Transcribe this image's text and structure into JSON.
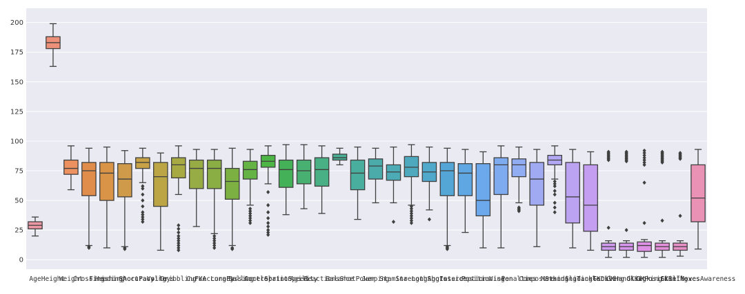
{
  "chart_data": {
    "type": "box",
    "title": "",
    "xlabel": "",
    "ylabel": "",
    "ylim": [
      -8,
      212
    ],
    "yticks": [
      0,
      25,
      50,
      75,
      100,
      125,
      150,
      175,
      200
    ],
    "grid": "horizontal",
    "background_color": "#eaeaf2",
    "categories": [
      {
        "name": "Age",
        "min": 20,
        "q1": 26,
        "median": 29,
        "q3": 32,
        "max": 36,
        "outliers": [],
        "color": "#ea96a3"
      },
      {
        "name": "Height",
        "min": 163,
        "q1": 178,
        "median": 183,
        "q3": 188,
        "max": 199,
        "outliers": [],
        "color": "#ed9079"
      },
      {
        "name": "Weight",
        "min": 59,
        "q1": 72,
        "median": 77,
        "q3": 84,
        "max": 96,
        "outliers": [],
        "color": "#ee9160"
      },
      {
        "name": "Crossing",
        "min": 12,
        "q1": 54,
        "median": 75,
        "q3": 82,
        "max": 94,
        "outliers": [
          10,
          11
        ],
        "color": "#e08c4a"
      },
      {
        "name": "Finishing",
        "min": 10,
        "q1": 50,
        "median": 73,
        "q3": 82,
        "max": 95,
        "outliers": [],
        "color": "#d99447"
      },
      {
        "name": "HeadingAccuracy",
        "min": 11,
        "q1": 53,
        "median": 68,
        "q3": 81,
        "max": 92,
        "outliers": [
          9,
          10
        ],
        "color": "#cf9a49"
      },
      {
        "name": "ShortPassing",
        "min": 65,
        "q1": 77,
        "median": 82,
        "q3": 86,
        "max": 94,
        "outliers": [
          32,
          34,
          36,
          38,
          40,
          45,
          50,
          55,
          60,
          62
        ],
        "color": "#c8a246"
      },
      {
        "name": "Volleys",
        "min": 8,
        "q1": 45,
        "median": 70,
        "q3": 82,
        "max": 90,
        "outliers": [],
        "color": "#bba545"
      },
      {
        "name": "Dribbling",
        "min": 55,
        "q1": 69,
        "median": 80,
        "q3": 86,
        "max": 96,
        "outliers": [
          8,
          10,
          12,
          14,
          16,
          18,
          20,
          23,
          26,
          29
        ],
        "color": "#a7a943"
      },
      {
        "name": "Curve",
        "min": 28,
        "q1": 60,
        "median": 77,
        "q3": 84,
        "max": 93,
        "outliers": [],
        "color": "#98ac45"
      },
      {
        "name": "FKAccuracy",
        "min": 22,
        "q1": 60,
        "median": 77,
        "q3": 84,
        "max": 93,
        "outliers": [
          10,
          12,
          14,
          16,
          18,
          20
        ],
        "color": "#8aae44"
      },
      {
        "name": "LongPassing",
        "min": 12,
        "q1": 51,
        "median": 66,
        "q3": 77,
        "max": 94,
        "outliers": [
          9,
          10
        ],
        "color": "#7cb042"
      },
      {
        "name": "BallControl",
        "min": 46,
        "q1": 68,
        "median": 76,
        "q3": 83,
        "max": 93,
        "outliers": [
          31,
          33,
          35,
          37,
          39,
          41,
          43
        ],
        "color": "#65b345"
      },
      {
        "name": "Acceleration",
        "min": 64,
        "q1": 78,
        "median": 83,
        "q3": 88,
        "max": 96,
        "outliers": [
          21,
          23,
          25,
          28,
          31,
          35,
          40,
          46,
          57
        ],
        "color": "#4db446"
      },
      {
        "name": "SprintSpeed",
        "min": 38,
        "q1": 61,
        "median": 76,
        "q3": 84,
        "max": 97,
        "outliers": [],
        "color": "#44b158"
      },
      {
        "name": "Agility",
        "min": 43,
        "q1": 64,
        "median": 75,
        "q3": 84,
        "max": 97,
        "outliers": [],
        "color": "#48b171"
      },
      {
        "name": "Reactions",
        "min": 39,
        "q1": 62,
        "median": 76,
        "q3": 86,
        "max": 96,
        "outliers": [],
        "color": "#49b085"
      },
      {
        "name": "Balance",
        "min": 80,
        "q1": 84,
        "median": 86,
        "q3": 89,
        "max": 94,
        "outliers": [],
        "color": "#4aaf94"
      },
      {
        "name": "ShotPower",
        "min": 34,
        "q1": 59,
        "median": 73,
        "q3": 84,
        "max": 95,
        "outliers": [],
        "color": "#4aae9f"
      },
      {
        "name": "Jumping",
        "min": 48,
        "q1": 68,
        "median": 79,
        "q3": 85,
        "max": 94,
        "outliers": [],
        "color": "#4babaa"
      },
      {
        "name": "Stamina",
        "min": 48,
        "q1": 67,
        "median": 74,
        "q3": 80,
        "max": 95,
        "outliers": [
          32
        ],
        "color": "#4cabb5"
      },
      {
        "name": "Strength",
        "min": 46,
        "q1": 70,
        "median": 78,
        "q3": 87,
        "max": 97,
        "outliers": [
          31,
          33,
          35,
          37,
          39,
          41,
          43,
          45
        ],
        "color": "#4ea9bf"
      },
      {
        "name": "LongShots",
        "min": 42,
        "q1": 66,
        "median": 74,
        "q3": 82,
        "max": 95,
        "outliers": [
          34
        ],
        "color": "#50a8cb"
      },
      {
        "name": "Aggression",
        "min": 12,
        "q1": 54,
        "median": 75,
        "q3": 82,
        "max": 94,
        "outliers": [
          9,
          10,
          11
        ],
        "color": "#53a6d6"
      },
      {
        "name": "Interceptions",
        "min": 23,
        "q1": 54,
        "median": 73,
        "q3": 81,
        "max": 93,
        "outliers": [],
        "color": "#5ea7e2"
      },
      {
        "name": "Positioning",
        "min": 10,
        "q1": 37,
        "median": 50,
        "q3": 81,
        "max": 91,
        "outliers": [],
        "color": "#6ca8ec"
      },
      {
        "name": "Vision",
        "min": 10,
        "q1": 55,
        "median": 80,
        "q3": 86,
        "max": 96,
        "outliers": [],
        "color": "#7eaaf0"
      },
      {
        "name": "Penalties",
        "min": 48,
        "q1": 70,
        "median": 80,
        "q3": 85,
        "max": 95,
        "outliers": [
          41,
          42,
          43,
          44
        ],
        "color": "#90acf2"
      },
      {
        "name": "Composure",
        "min": 11,
        "q1": 46,
        "median": 68,
        "q3": 82,
        "max": 93,
        "outliers": [],
        "color": "#a0aaf2"
      },
      {
        "name": "Marking",
        "min": 68,
        "q1": 80,
        "median": 84,
        "q3": 88,
        "max": 96,
        "outliers": [
          40,
          44,
          48,
          55,
          58,
          62,
          64,
          66
        ],
        "color": "#b1a7f2"
      },
      {
        "name": "StandingTackle",
        "min": 10,
        "q1": 31,
        "median": 53,
        "q3": 82,
        "max": 93,
        "outliers": [],
        "color": "#bba3f1"
      },
      {
        "name": "SlidingTackle",
        "min": 8,
        "q1": 24,
        "median": 46,
        "q3": 80,
        "max": 91,
        "outliers": [],
        "color": "#c49ef0"
      },
      {
        "name": "GKDiving",
        "min": 2,
        "q1": 8,
        "median": 11,
        "q3": 14,
        "max": 16,
        "outliers": [
          27,
          84,
          85,
          86,
          87,
          88,
          89,
          90,
          91
        ],
        "color": "#cd9aee"
      },
      {
        "name": "GKHandling",
        "min": 2,
        "q1": 8,
        "median": 11,
        "q3": 14,
        "max": 16,
        "outliers": [
          25,
          83,
          84,
          85,
          86,
          87,
          88,
          89,
          90,
          91
        ],
        "color": "#d595ec"
      },
      {
        "name": "GKKicking",
        "min": 2,
        "q1": 7,
        "median": 12,
        "q3": 15,
        "max": 17,
        "outliers": [
          31,
          65,
          80,
          82,
          84,
          86,
          88,
          90,
          92
        ],
        "color": "#de90e5"
      },
      {
        "name": "GKPositioning",
        "min": 2,
        "q1": 8,
        "median": 11,
        "q3": 14,
        "max": 16,
        "outliers": [
          33,
          82,
          83,
          84,
          85,
          86,
          87,
          88,
          89,
          90,
          91
        ],
        "color": "#e38fd9"
      },
      {
        "name": "GKReflexes",
        "min": 3,
        "q1": 8,
        "median": 11,
        "q3": 14,
        "max": 16,
        "outliers": [
          37,
          85,
          86,
          87,
          88,
          89,
          90
        ],
        "color": "#e790c8"
      },
      {
        "name": "SkillMovesAwareness",
        "min": 9,
        "q1": 32,
        "median": 52,
        "q3": 80,
        "max": 93,
        "outliers": [],
        "color": "#ea92b6"
      }
    ]
  }
}
